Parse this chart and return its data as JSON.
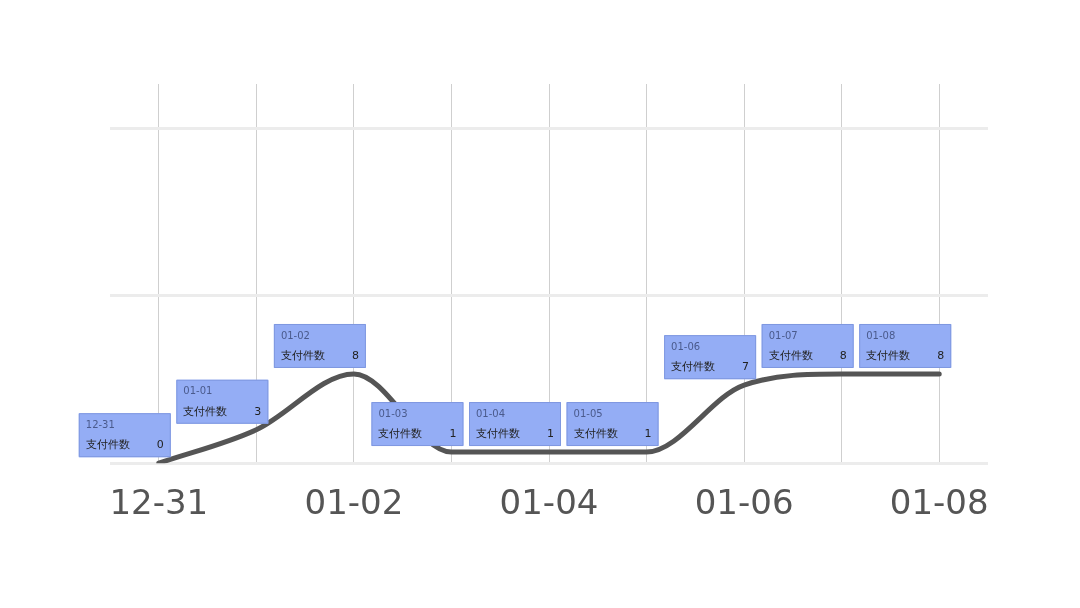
{
  "chart_data": {
    "type": "line",
    "categories": [
      "12-31",
      null,
      "01-02",
      null,
      "01-04",
      null,
      "01-06",
      null,
      "01-08"
    ],
    "series": [
      {
        "name": "支付件数",
        "color": "#555555",
        "values": [
          0,
          3,
          8,
          1,
          1,
          1,
          7,
          8,
          8
        ]
      }
    ],
    "annotations": [
      "12-31",
      "01-01",
      "01-02",
      "01-03",
      "01-04",
      "01-05",
      "01-06",
      "01-07",
      "01-08"
    ],
    "ylim": [
      0,
      34
    ],
    "yticks": [
      {
        "value": 0,
        "label": null
      },
      {
        "value": 15,
        "label": null
      },
      {
        "value": 30,
        "label": null
      }
    ],
    "tick_labels": "x",
    "grid": true,
    "legend": false,
    "marker": "none",
    "line_style": "solid",
    "data_labels": true
  }
}
